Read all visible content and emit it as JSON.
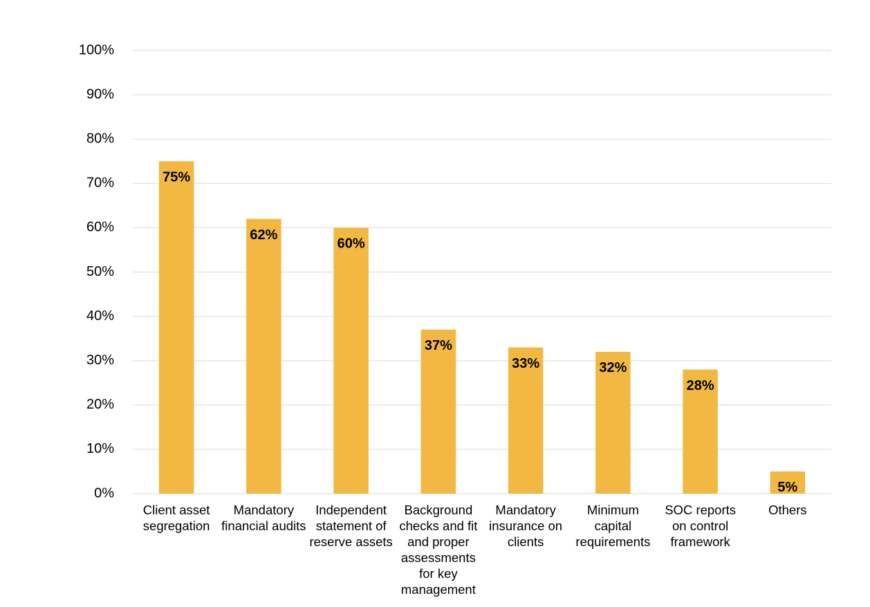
{
  "chart_data": {
    "type": "bar",
    "categories": [
      "Client asset segregation",
      "Mandatory financial audits",
      "Independent statement of reserve assets",
      "Background checks and fit and proper assessments for key management",
      "Mandatory insurance on clients",
      "Minimum capital requirements",
      "SOC reports on control framework",
      "Others"
    ],
    "values": [
      75,
      62,
      60,
      37,
      33,
      32,
      28,
      5
    ],
    "value_labels": [
      "75%",
      "62%",
      "60%",
      "37%",
      "33%",
      "32%",
      "28%",
      "5%"
    ],
    "color": "#f2b841",
    "ylim": [
      0,
      100
    ],
    "yticks": [
      {
        "value": 0,
        "label": "0%"
      },
      {
        "value": 10,
        "label": "10%"
      },
      {
        "value": 20,
        "label": "20%"
      },
      {
        "value": 30,
        "label": "30%"
      },
      {
        "value": 40,
        "label": "40%"
      },
      {
        "value": 50,
        "label": "50%"
      },
      {
        "value": 60,
        "label": "60%"
      },
      {
        "value": 70,
        "label": "70%"
      },
      {
        "value": 80,
        "label": "80%"
      },
      {
        "value": 90,
        "label": "90%"
      },
      {
        "value": 100,
        "label": "100%"
      }
    ],
    "grid": true
  }
}
